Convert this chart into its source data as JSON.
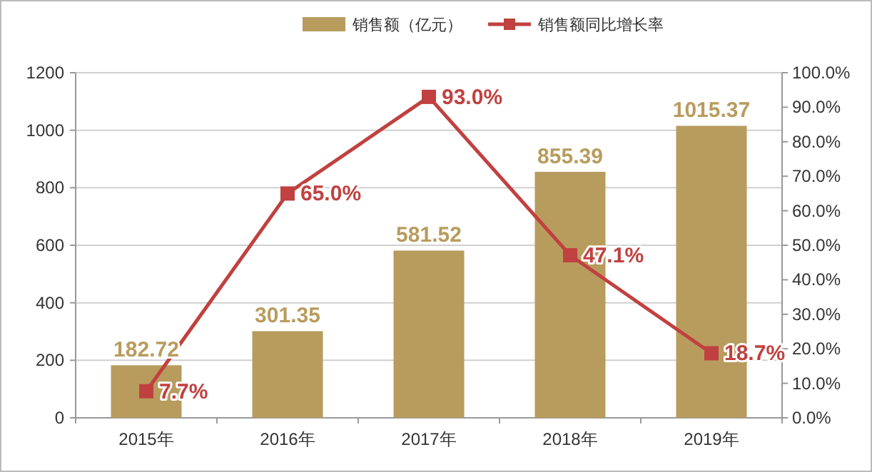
{
  "chart_data": {
    "type": "bar",
    "categories": [
      "2015年",
      "2016年",
      "2017年",
      "2018年",
      "2019年"
    ],
    "series": [
      {
        "name": "销售额（亿元）",
        "color": "#b89c5e",
        "values": [
          182.72,
          301.35,
          581.52,
          855.39,
          1015.37
        ],
        "value_labels": [
          "182.72",
          "301.35",
          "581.52",
          "855.39",
          "1015.37"
        ]
      },
      {
        "name": "销售额同比增长率",
        "type": "line",
        "axis": "y2",
        "color": "#c0413f",
        "values": [
          7.7,
          65.0,
          93.0,
          47.1,
          18.7
        ],
        "value_labels": [
          "7.7%",
          "65.0%",
          "93.0%",
          "47.1%",
          "18.7%"
        ]
      }
    ],
    "ylim": [
      0,
      1200
    ],
    "yticks": [
      0,
      200,
      400,
      600,
      800,
      1000,
      1200
    ],
    "y2lim": [
      0,
      100
    ],
    "y2ticks": [
      {
        "value": 0,
        "label": "0.0%"
      },
      {
        "value": 10,
        "label": "10.0%"
      },
      {
        "value": 20,
        "label": "20.0%"
      },
      {
        "value": 30,
        "label": "30.0%"
      },
      {
        "value": 40,
        "label": "40.0%"
      },
      {
        "value": 50,
        "label": "50.0%"
      },
      {
        "value": 60,
        "label": "60.0%"
      },
      {
        "value": 70,
        "label": "70.0%"
      },
      {
        "value": 80,
        "label": "80.0%"
      },
      {
        "value": 90,
        "label": "90.0%"
      },
      {
        "value": 100,
        "label": "100.0%"
      }
    ],
    "grid": "y",
    "legend": "top",
    "marker": "square",
    "line_style": "solid"
  }
}
